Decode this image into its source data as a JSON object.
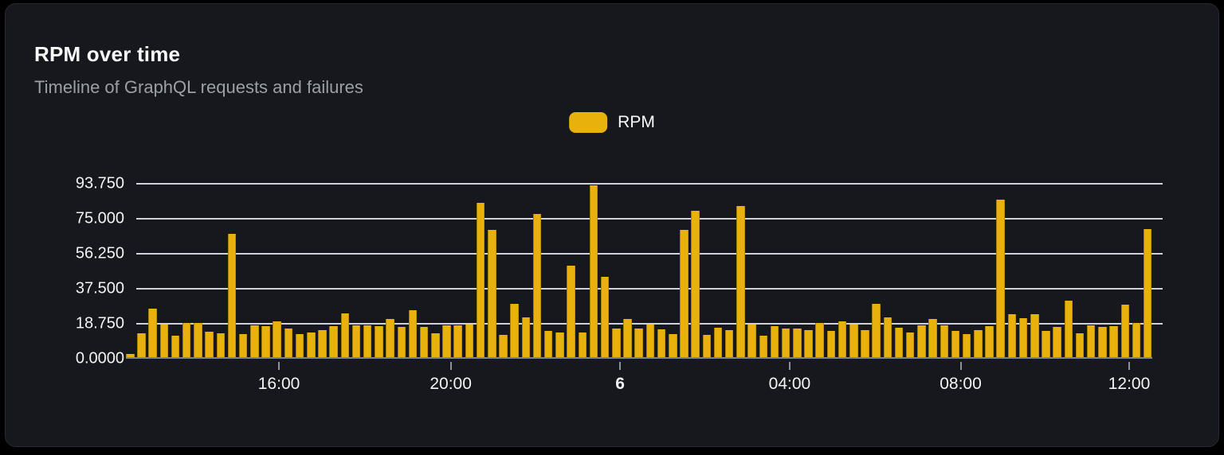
{
  "header": {
    "title": "RPM over time",
    "subtitle": "Timeline of GraphQL requests and failures"
  },
  "legend": {
    "label": "RPM",
    "swatch_color": "#e8b10c",
    "position": "top-center"
  },
  "colors": {
    "page_bg": "#000000",
    "card_bg": "#16181d",
    "card_border": "#262a31",
    "bar": "#e8b10c",
    "gridline": "#dde3ed",
    "axis_line": "#80868f",
    "axis_text": "#f1f3f5",
    "subtitle_text": "#9aa0a6",
    "title_text": "#f7f8f8"
  },
  "chart_data": {
    "type": "bar",
    "title": "RPM over time",
    "subtitle": "Timeline of GraphQL requests and failures",
    "xlabel": "",
    "ylabel": "",
    "ylim": [
      0,
      93.75
    ],
    "grid": "horizontal",
    "legend_position": "top-center",
    "y_ticks": [
      {
        "label": "93.750",
        "value": 93.75
      },
      {
        "label": "75.000",
        "value": 75.0
      },
      {
        "label": "56.250",
        "value": 56.25
      },
      {
        "label": "37.500",
        "value": 37.5
      },
      {
        "label": "18.750",
        "value": 18.75
      },
      {
        "label": "0.0000",
        "value": 0.0
      }
    ],
    "x_ticks": [
      {
        "label": "16:00",
        "pos_pct": 14.91,
        "bold": false
      },
      {
        "label": "20:00",
        "pos_pct": 31.65,
        "bold": false
      },
      {
        "label": "6",
        "pos_pct": 48.14,
        "bold": true
      },
      {
        "label": "04:00",
        "pos_pct": 64.67,
        "bold": false
      },
      {
        "label": "08:00",
        "pos_pct": 81.33,
        "bold": false
      },
      {
        "label": "12:00",
        "pos_pct": 97.75,
        "bold": false
      }
    ],
    "series": [
      {
        "name": "RPM",
        "color": "#e8b10c",
        "values": [
          1.5,
          13,
          26,
          17.5,
          11.7,
          18.2,
          18.3,
          13.6,
          12.9,
          66,
          12.2,
          17.2,
          16.5,
          19,
          15.3,
          12.5,
          13.2,
          14.6,
          16.5,
          23.6,
          16.9,
          17.2,
          16.5,
          20.3,
          16,
          25.3,
          16,
          12.6,
          16.9,
          17.2,
          17.5,
          82.6,
          68.3,
          11.9,
          28.6,
          21.5,
          76.9,
          14,
          13.2,
          49,
          13.3,
          92,
          43.2,
          15.3,
          20.3,
          15.5,
          17.5,
          15,
          12.4,
          68,
          78.3,
          11.9,
          15.7,
          14.7,
          80.8,
          17.6,
          11.7,
          16.7,
          15.3,
          15.5,
          14.7,
          18.3,
          14,
          19.3,
          17.6,
          14.6,
          28.6,
          21.5,
          15.7,
          13.2,
          17.2,
          20.5,
          16.9,
          14,
          12.2,
          14.3,
          16.7,
          84.4,
          22.9,
          21,
          22.9,
          14,
          16,
          30.3,
          12.9,
          16.9,
          16,
          16.7,
          28.2,
          18.2,
          68.7
        ]
      }
    ]
  }
}
